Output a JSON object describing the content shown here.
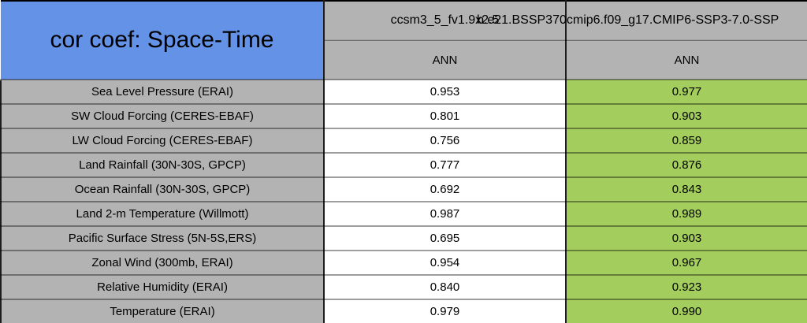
{
  "chart_data": {
    "type": "table",
    "title": "cor coef: Space-Time",
    "column_headers": [
      "ccsm3_5_fv1.9x2.5",
      "b.e21.BSSP370cmip6.f09_g17.CMIP6-SSP3-7.0-SSP"
    ],
    "season_row": [
      "ANN",
      "ANN"
    ],
    "row_labels": [
      "Sea Level Pressure (ERAI)",
      "SW Cloud Forcing (CERES-EBAF)",
      "LW Cloud Forcing (CERES-EBAF)",
      "Land Rainfall (30N-30S, GPCP)",
      "Ocean Rainfall (30N-30S, GPCP)",
      "Land 2-m Temperature (Willmott)",
      "Pacific Surface Stress (5N-5S,ERS)",
      "Zonal Wind (300mb, ERAI)",
      "Relative Humidity (ERAI)",
      "Temperature (ERAI)"
    ],
    "series": [
      {
        "name": "ccsm3_5_fv1.9x2.5",
        "values": [
          "0.953",
          "0.801",
          "0.756",
          "0.777",
          "0.692",
          "0.987",
          "0.695",
          "0.954",
          "0.840",
          "0.979"
        ]
      },
      {
        "name": "b.e21.BSSP370cmip6.f09_g17.CMIP6-SSP3-7.0-SSP",
        "values": [
          "0.977",
          "0.903",
          "0.859",
          "0.876",
          "0.843",
          "0.989",
          "0.903",
          "0.967",
          "0.923",
          "0.990"
        ]
      }
    ],
    "colors": {
      "title_bg": "#6392E6",
      "header_bg": "#B3B3B3",
      "label_bg": "#B3B3B3",
      "value1_bg": "#FFFFFF",
      "value2_bg": "#A3CD5C"
    }
  }
}
